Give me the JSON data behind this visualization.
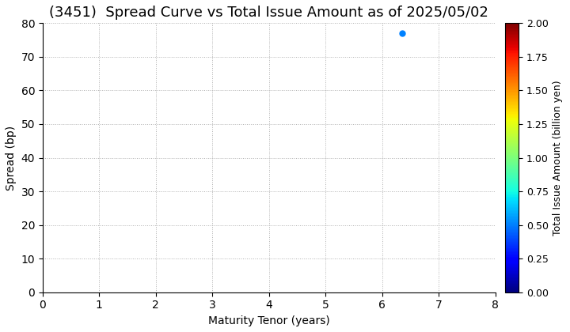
{
  "title": "(3451)  Spread Curve vs Total Issue Amount as of 2025/05/02",
  "xlabel": "Maturity Tenor (years)",
  "ylabel": "Spread (bp)",
  "colorbar_label": "Total Issue Amount (billion yen)",
  "xlim": [
    0,
    8
  ],
  "ylim": [
    0,
    80
  ],
  "xticks": [
    0,
    1,
    2,
    3,
    4,
    5,
    6,
    7,
    8
  ],
  "yticks": [
    0,
    10,
    20,
    30,
    40,
    50,
    60,
    70,
    80
  ],
  "colorbar_min": 0.0,
  "colorbar_max": 2.0,
  "colorbar_ticks": [
    0.0,
    0.25,
    0.5,
    0.75,
    1.0,
    1.25,
    1.5,
    1.75,
    2.0
  ],
  "scatter_x": [
    6.35
  ],
  "scatter_y": [
    77
  ],
  "scatter_amounts": [
    0.5
  ],
  "background_color": "#ffffff",
  "grid_color": "#b0b0b0",
  "title_fontsize": 13,
  "axis_fontsize": 10,
  "colorbar_fontsize": 9,
  "marker_size": 25
}
